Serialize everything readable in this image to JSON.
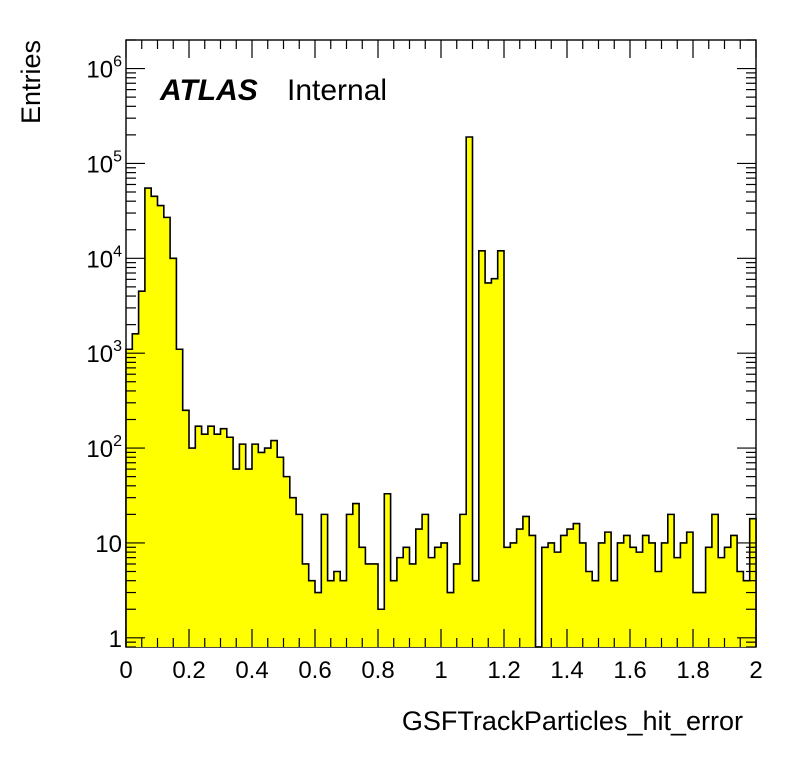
{
  "chart_data": {
    "type": "histogram",
    "xlabel": "GSFTrackParticles_hit_error",
    "ylabel": "Entries",
    "xlim": [
      0,
      2
    ],
    "ylim": [
      0.8,
      2000000
    ],
    "log_y": true,
    "grid": false,
    "bin_width": 0.02,
    "fill_color": "#ffff00",
    "line_color": "#000000",
    "label_main": "ATLAS",
    "label_sub": "Internal",
    "x_ticks": [
      {
        "v": 0,
        "l": "0"
      },
      {
        "v": 0.2,
        "l": "0.2"
      },
      {
        "v": 0.4,
        "l": "0.4"
      },
      {
        "v": 0.6,
        "l": "0.6"
      },
      {
        "v": 0.8,
        "l": "0.8"
      },
      {
        "v": 1.0,
        "l": "1"
      },
      {
        "v": 1.2,
        "l": "1.2"
      },
      {
        "v": 1.4,
        "l": "1.4"
      },
      {
        "v": 1.6,
        "l": "1.6"
      },
      {
        "v": 1.8,
        "l": "1.8"
      },
      {
        "v": 2.0,
        "l": "2"
      }
    ],
    "y_ticks": [
      {
        "v": 1,
        "base": "1",
        "exp": ""
      },
      {
        "v": 10,
        "base": "10",
        "exp": ""
      },
      {
        "v": 100,
        "base": "10",
        "exp": "2"
      },
      {
        "v": 1000,
        "base": "10",
        "exp": "3"
      },
      {
        "v": 10000,
        "base": "10",
        "exp": "4"
      },
      {
        "v": 100000,
        "base": "10",
        "exp": "5"
      },
      {
        "v": 1000000,
        "base": "10",
        "exp": "6"
      }
    ],
    "values": [
      1100,
      1600,
      4500,
      55000,
      45000,
      36000,
      27000,
      10000,
      1100,
      250,
      100,
      170,
      140,
      170,
      140,
      160,
      130,
      60,
      110,
      60,
      110,
      90,
      100,
      120,
      80,
      50,
      30,
      20,
      6,
      4,
      3,
      20,
      4,
      5,
      4,
      20,
      26,
      9,
      6,
      6,
      2,
      33,
      4,
      7,
      9,
      6,
      14,
      20,
      7,
      9,
      10,
      3,
      6,
      20,
      190000,
      4,
      12000,
      5500,
      6100,
      12000,
      9,
      10,
      14,
      19,
      12,
      0,
      9,
      10,
      8,
      12,
      14,
      16,
      10,
      5,
      4,
      10,
      13,
      4,
      10,
      12,
      9,
      8,
      12,
      10,
      5,
      10,
      20,
      7,
      10,
      13,
      3,
      3,
      9,
      20,
      7,
      9,
      12,
      5,
      4,
      18
    ]
  }
}
